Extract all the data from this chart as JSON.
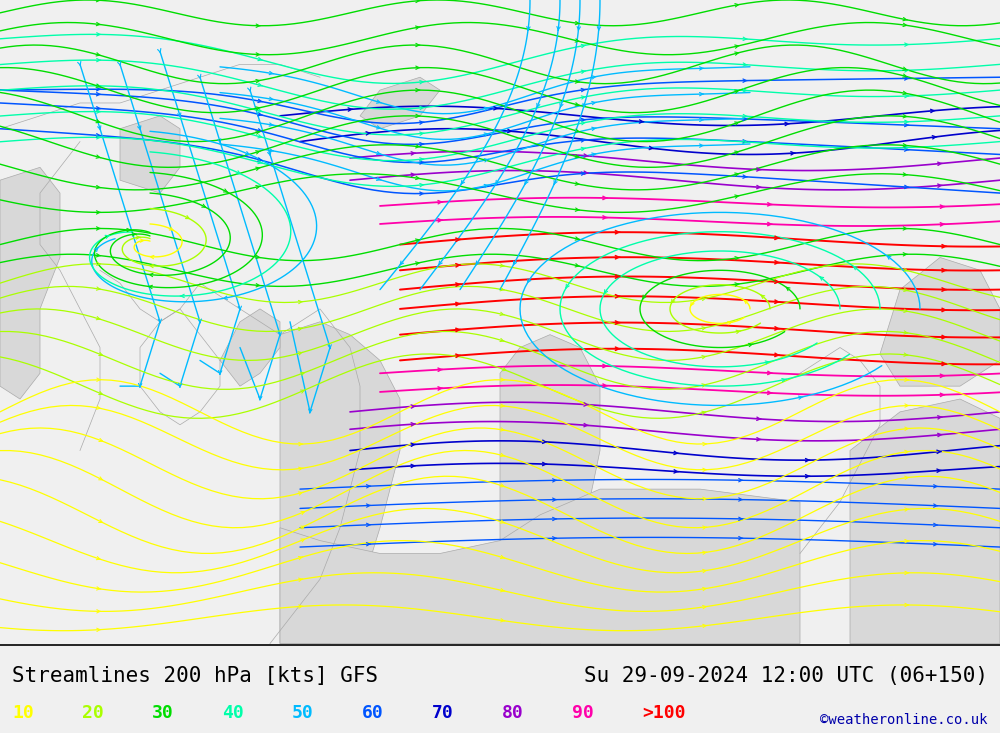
{
  "title_left": "Streamlines 200 hPa [kts] GFS",
  "title_right": "Su 29-09-2024 12:00 UTC (06+150)",
  "copyright": "©weatheronline.co.uk",
  "legend_labels": [
    "10",
    "20",
    "30",
    "40",
    "50",
    "60",
    "70",
    "80",
    "90",
    ">100"
  ],
  "legend_colors": [
    "#ffff00",
    "#aaff00",
    "#00dd00",
    "#00ffaa",
    "#00bbff",
    "#0055ff",
    "#0000cc",
    "#9900cc",
    "#ff00aa",
    "#ff0000"
  ],
  "land_color": "#aaee88",
  "ocean_color": "#d8d8d8",
  "bg_color": "#f0f0f0",
  "coast_color": "#aaaaaa",
  "title_fontsize": 15,
  "legend_fontsize": 13,
  "copyright_fontsize": 10,
  "figsize": [
    10.0,
    7.33
  ],
  "dpi": 100
}
